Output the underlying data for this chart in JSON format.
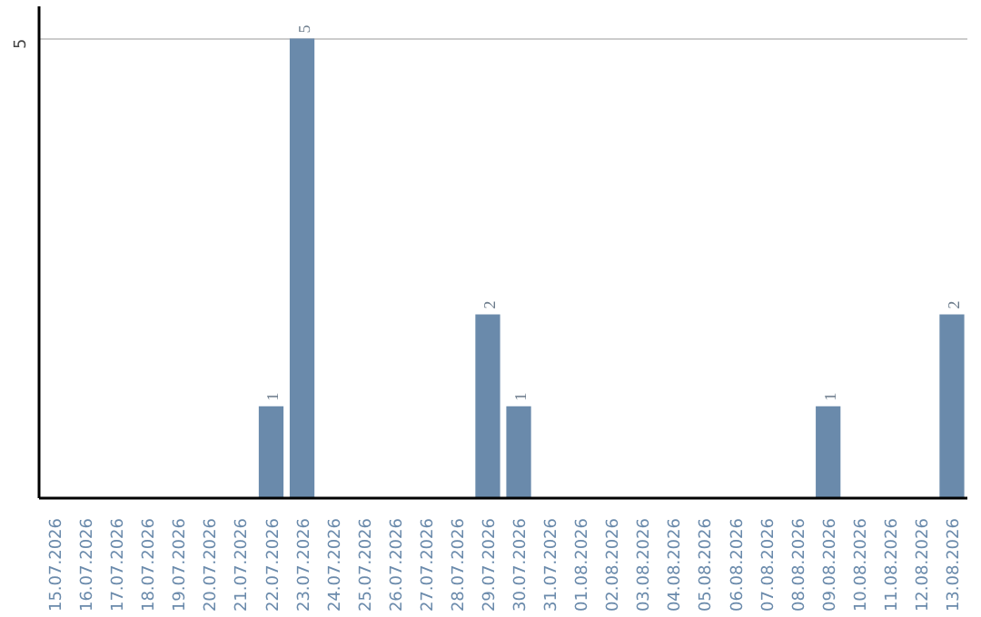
{
  "chart_data": {
    "type": "bar",
    "categories": [
      "15.07.2026",
      "16.07.2026",
      "17.07.2026",
      "18.07.2026",
      "19.07.2026",
      "20.07.2026",
      "21.07.2026",
      "22.07.2026",
      "23.07.2026",
      "24.07.2026",
      "25.07.2026",
      "26.07.2026",
      "27.07.2026",
      "28.07.2026",
      "29.07.2026",
      "30.07.2026",
      "31.07.2026",
      "01.08.2026",
      "02.08.2026",
      "03.08.2026",
      "04.08.2026",
      "05.08.2026",
      "06.08.2026",
      "07.08.2026",
      "08.08.2026",
      "09.08.2026",
      "10.08.2026",
      "11.08.2026",
      "12.08.2026",
      "13.08.2026"
    ],
    "values": [
      0,
      0,
      0,
      0,
      0,
      0,
      0,
      1,
      5,
      0,
      0,
      0,
      0,
      0,
      2,
      1,
      0,
      0,
      0,
      0,
      0,
      0,
      0,
      0,
      0,
      1,
      0,
      0,
      0,
      2
    ],
    "value_labels": [
      null,
      null,
      null,
      null,
      null,
      null,
      null,
      "1",
      "5",
      null,
      null,
      null,
      null,
      null,
      "2",
      "1",
      null,
      null,
      null,
      null,
      null,
      null,
      null,
      null,
      null,
      "1",
      null,
      null,
      null,
      "2"
    ],
    "color": "#6a8aab",
    "ylim": [
      0,
      5.35
    ],
    "yticks": [
      5
    ],
    "grid": "y"
  }
}
